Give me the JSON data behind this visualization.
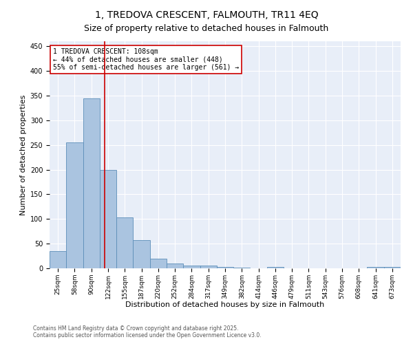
{
  "title": "1, TREDOVA CRESCENT, FALMOUTH, TR11 4EQ",
  "subtitle": "Size of property relative to detached houses in Falmouth",
  "xlabel": "Distribution of detached houses by size in Falmouth",
  "ylabel": "Number of detached properties",
  "categories": [
    "25sqm",
    "58sqm",
    "90sqm",
    "122sqm",
    "155sqm",
    "187sqm",
    "220sqm",
    "252sqm",
    "284sqm",
    "317sqm",
    "349sqm",
    "382sqm",
    "414sqm",
    "446sqm",
    "479sqm",
    "511sqm",
    "543sqm",
    "576sqm",
    "608sqm",
    "641sqm",
    "673sqm"
  ],
  "values": [
    35,
    255,
    345,
    200,
    103,
    57,
    20,
    10,
    6,
    5,
    3,
    1,
    0,
    3,
    0,
    0,
    0,
    0,
    0,
    3,
    3
  ],
  "bar_color": "#aac4e0",
  "bar_edge_color": "#5b8db8",
  "vline_x": 2.78,
  "vline_color": "#cc0000",
  "annotation_text": "1 TREDOVA CRESCENT: 108sqm\n← 44% of detached houses are smaller (448)\n55% of semi-detached houses are larger (561) →",
  "annotation_box_color": "#ffffff",
  "annotation_box_edge": "#cc0000",
  "ylim": [
    0,
    460
  ],
  "yticks": [
    0,
    50,
    100,
    150,
    200,
    250,
    300,
    350,
    400,
    450
  ],
  "footnote1": "Contains HM Land Registry data © Crown copyright and database right 2025.",
  "footnote2": "Contains public sector information licensed under the Open Government Licence v3.0.",
  "bg_color": "#e8eef8",
  "fig_bg_color": "#ffffff",
  "title_fontsize": 10,
  "tick_fontsize": 6.5,
  "label_fontsize": 8,
  "annot_fontsize": 7
}
